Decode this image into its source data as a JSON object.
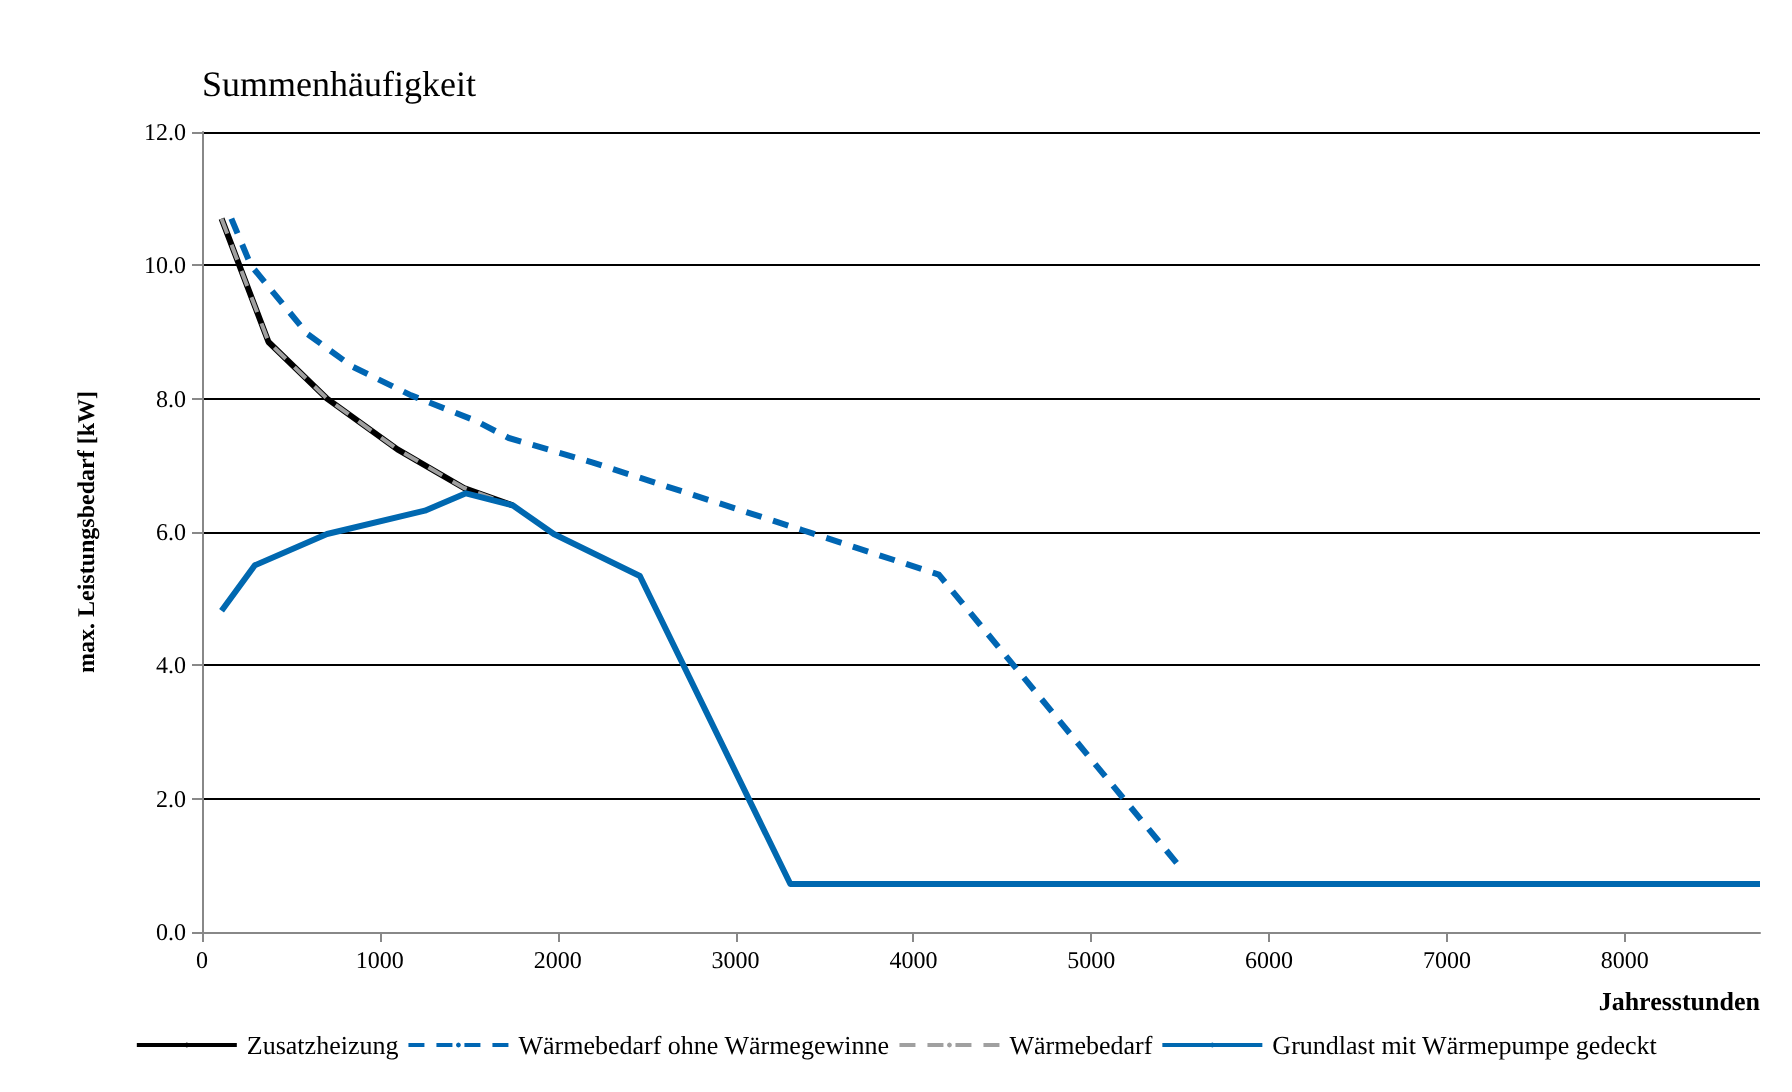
{
  "chart_data": {
    "type": "line",
    "title": "Summenhäufigkeit",
    "xlabel": "Jahresstunden",
    "ylabel": "max. Leistungsbedarf [kW]",
    "xlim": [
      0,
      8760
    ],
    "xticks": [
      0,
      1000,
      2000,
      3000,
      4000,
      5000,
      6000,
      7000,
      8000
    ],
    "ylim": [
      0,
      12
    ],
    "yticks": [
      {
        "value": 0,
        "label": "0.0"
      },
      {
        "value": 2,
        "label": "2.0"
      },
      {
        "value": 4,
        "label": "4.0"
      },
      {
        "value": 6,
        "label": "6.0"
      },
      {
        "value": 8,
        "label": "8.0"
      },
      {
        "value": 10,
        "label": "10.0"
      },
      {
        "value": 12,
        "label": "12.0"
      }
    ],
    "grid": "y",
    "legend": "bottom",
    "marker": "none",
    "series": [
      {
        "name": "Zusatzheizung",
        "color": "#000000",
        "line_style": "solid",
        "x": [
          110,
          374,
          703,
          1099,
          1473,
          1747
        ],
        "values": [
          10.7,
          8.85,
          8.0,
          7.24,
          6.66,
          6.4
        ]
      },
      {
        "name": "Wärmebedarf ohne Wärmegewinne",
        "color": "#0066b3",
        "line_style": "dashed",
        "x": [
          165,
          275,
          593,
          846,
          1176,
          1538,
          1725,
          2198,
          3374,
          4143,
          5516
        ],
        "values": [
          10.7,
          10.0,
          8.97,
          8.48,
          8.05,
          7.67,
          7.41,
          7.04,
          6.03,
          5.36,
          0.92
        ]
      },
      {
        "name": "Wärmebedarf",
        "color": "#a0a0a0",
        "line_style": "dashed",
        "x": [
          110,
          374,
          703,
          1099,
          1473,
          1747
        ],
        "values": [
          10.7,
          8.85,
          8.0,
          7.24,
          6.66,
          6.4
        ]
      },
      {
        "name": "Grundlast mit Wärmepumpe gedeckt",
        "color": "#0068b0",
        "line_style": "solid",
        "x": [
          110,
          297,
          703,
          1253,
          1484,
          1747,
          1978,
          2462,
          3308,
          8760
        ],
        "values": [
          4.82,
          5.5,
          5.97,
          6.32,
          6.58,
          6.4,
          5.97,
          5.34,
          0.72,
          0.72
        ]
      }
    ]
  }
}
